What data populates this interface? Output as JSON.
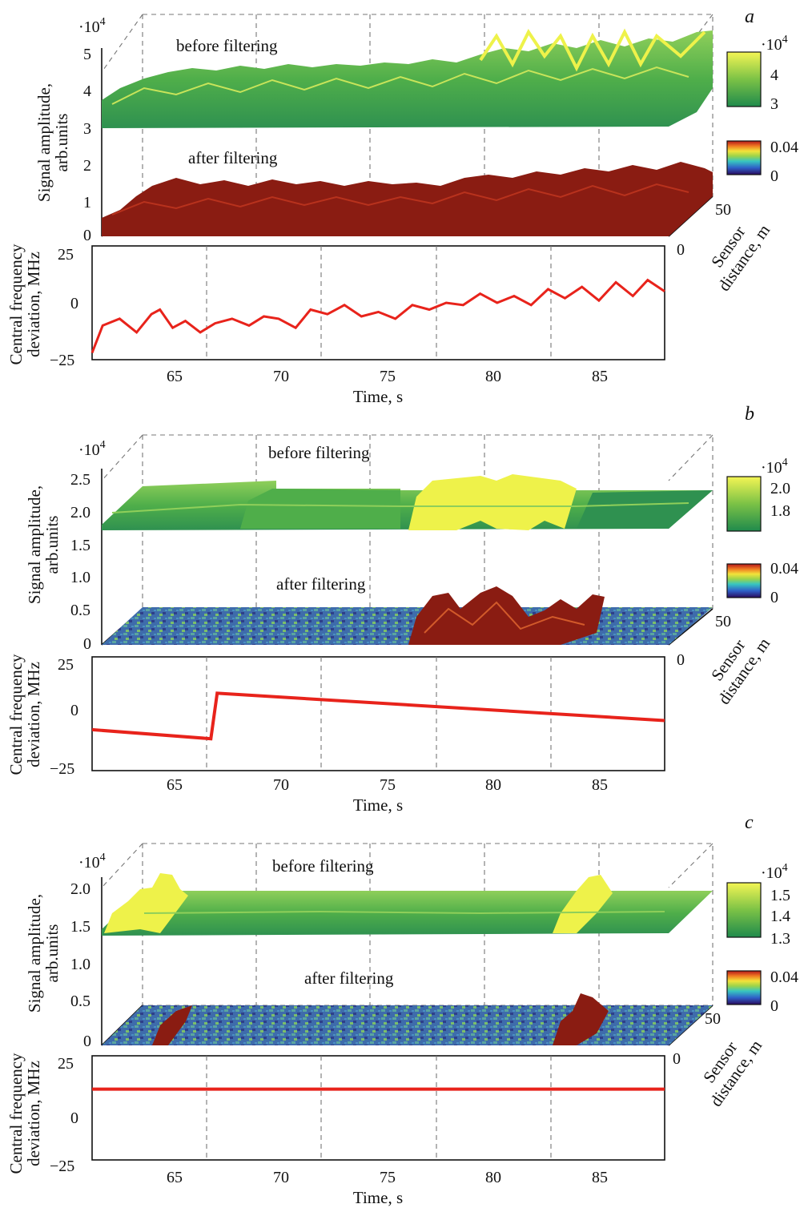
{
  "chart_data": [
    {
      "type": "surface-and-line",
      "panel_letter": "a",
      "surface": {
        "exponent_label": "·10",
        "exponent_sup": "4",
        "ylabel_line1": "Signal amplitude,",
        "ylabel_line2": "arb.units",
        "yticks": [
          "5",
          "4",
          "3",
          "2",
          "1",
          "0"
        ],
        "label_before": "before filtering",
        "label_after": "after filtering",
        "depth_ticks": [
          "50",
          "0"
        ],
        "depth_label_line1": "Sensor",
        "depth_label_line2": "distance, m",
        "colorbar_before": {
          "exponent_label": "·10",
          "exponent_sup": "4",
          "ticks": [
            "4",
            "3"
          ]
        },
        "colorbar_after": {
          "ticks": [
            "0.04",
            "0"
          ]
        },
        "before_level": [
          3.3,
          3.6,
          3.8,
          4.0,
          4.3
        ],
        "after_level": [
          0.5,
          0.8,
          0.9,
          1.0,
          1.3
        ]
      },
      "line": {
        "ylabel_line1": "Central frequency",
        "ylabel_line2": "deviation, MHz",
        "yticks": [
          "25",
          "0",
          "−25"
        ],
        "ylim": [
          -25,
          25
        ],
        "xlim": [
          61.2,
          88.2
        ],
        "xticks": [
          "65",
          "70",
          "75",
          "80",
          "85"
        ],
        "xlabel": "Time, s",
        "series": [
          {
            "color": "#e8231b",
            "x": [
              61.2,
              61.7,
              62.5,
              63.3,
              64.0,
              64.4,
              65.0,
              65.6,
              66.3,
              67.0,
              67.8,
              68.6,
              69.3,
              70.0,
              70.8,
              71.5,
              72.3,
              73.1,
              73.9,
              74.7,
              75.5,
              76.3,
              77.1,
              77.9,
              78.7,
              79.5,
              80.3,
              81.1,
              81.9,
              82.7,
              83.5,
              84.3,
              85.1,
              85.9,
              86.7,
              87.4,
              88.2
            ],
            "y": [
              -22,
              -10,
              -7,
              -13,
              -5,
              -3,
              -11,
              -8,
              -13,
              -9,
              -7,
              -10,
              -6,
              -7,
              -11,
              -3,
              -5,
              -1,
              -6,
              -4,
              -7,
              -1,
              -3,
              0,
              -1,
              4,
              0,
              3,
              -1,
              6,
              2,
              7,
              1,
              9,
              3,
              10,
              5
            ]
          }
        ]
      }
    },
    {
      "type": "surface-and-line",
      "panel_letter": "b",
      "surface": {
        "exponent_label": "·10",
        "exponent_sup": "4",
        "ylabel_line1": "Signal amplitude,",
        "ylabel_line2": "arb.units",
        "yticks": [
          "2.5",
          "2.0",
          "1.5",
          "1.0",
          "0.5",
          "0"
        ],
        "label_before": "before filtering",
        "label_after": "after filtering",
        "depth_ticks": [
          "50",
          "0"
        ],
        "depth_label_line1": "Sensor",
        "depth_label_line2": "distance, m",
        "colorbar_before": {
          "exponent_label": "·10",
          "exponent_sup": "4",
          "ticks": [
            "2.0",
            "1.8"
          ]
        },
        "colorbar_after": {
          "ticks": [
            "0.04",
            "0"
          ]
        },
        "before_level": [
          1.8,
          1.8,
          1.8,
          1.9,
          1.8
        ],
        "after_level": [
          0.1,
          0.1,
          0.1,
          0.4,
          0.1
        ]
      },
      "line": {
        "ylabel_line1": "Central frequency",
        "ylabel_line2": "deviation, MHz",
        "yticks": [
          "25",
          "0",
          "−25"
        ],
        "ylim": [
          -25,
          25
        ],
        "xlim": [
          61.2,
          88.2
        ],
        "xticks": [
          "65",
          "70",
          "75",
          "80",
          "85"
        ],
        "xlabel": "Time, s",
        "series": [
          {
            "color": "#e8231b",
            "x": [
              61.2,
              66.8,
              67.1,
              88.2
            ],
            "y": [
              -7,
              -11,
              9,
              -3
            ]
          }
        ]
      }
    },
    {
      "type": "surface-and-line",
      "panel_letter": "c",
      "surface": {
        "exponent_label": "·10",
        "exponent_sup": "4",
        "ylabel_line1": "Signal amplitude,",
        "ylabel_line2": "arb.units",
        "yticks": [
          "2.0",
          "1.5",
          "1.0",
          "0.5",
          "0"
        ],
        "label_before": "before filtering",
        "label_after": "after filtering",
        "depth_ticks": [
          "50",
          "0"
        ],
        "depth_label_line1": "Sensor",
        "depth_label_line2": "distance, m",
        "colorbar_before": {
          "exponent_label": "·10",
          "exponent_sup": "4",
          "ticks": [
            "1.5",
            "1.4",
            "1.3"
          ]
        },
        "colorbar_after": {
          "ticks": [
            "0.04",
            "0"
          ]
        },
        "before_level": [
          1.5,
          1.5,
          1.5,
          1.5,
          1.5
        ],
        "after_level": [
          0.1,
          0.1,
          0.1,
          0.1,
          0.1
        ]
      },
      "line": {
        "ylabel_line1": "Central frequency",
        "ylabel_line2": "deviation, MHz",
        "yticks": [
          "25",
          "0",
          "−25"
        ],
        "ylim": [
          -25,
          25
        ],
        "xlim": [
          61.2,
          88.2
        ],
        "xticks": [
          "65",
          "70",
          "75",
          "80",
          "85"
        ],
        "xlabel": "Time, s",
        "series": [
          {
            "color": "#e8231b",
            "x": [
              61.2,
              88.2
            ],
            "y": [
              9,
              9
            ]
          }
        ]
      }
    }
  ],
  "colors": {
    "surface_green": "#4fae4a",
    "surface_yellow": "#eef24a",
    "surface_dark_red": "#8a1c12",
    "noise_blue": "#3a64a8",
    "line_red": "#e8231b"
  }
}
